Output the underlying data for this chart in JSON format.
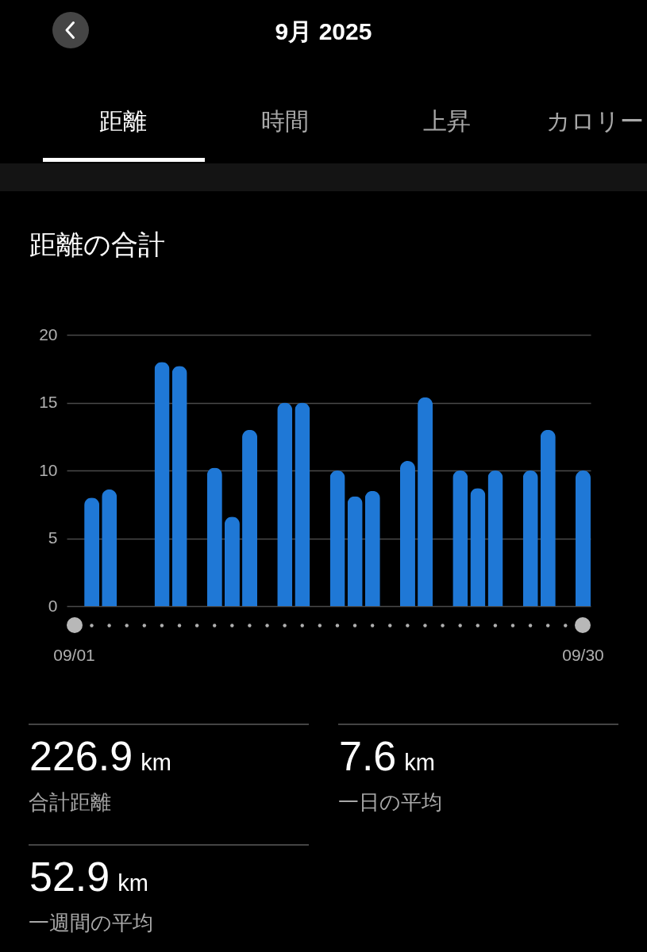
{
  "chart_data": {
    "type": "bar",
    "title": "距離の合計",
    "annotations": [
      "9月 2025",
      "距離",
      "時間",
      "上昇",
      "カロリー",
      "226.9 km",
      "合計距離",
      "7.6 km",
      "一日の平均",
      "52.9 km",
      "一週間の平均"
    ],
    "categories": [
      "09/01",
      null,
      null,
      null,
      null,
      null,
      null,
      null,
      null,
      null,
      null,
      null,
      null,
      null,
      null,
      null,
      null,
      null,
      null,
      null,
      null,
      null,
      null,
      null,
      null,
      null,
      null,
      null,
      null,
      "09/30"
    ],
    "values": [
      null,
      8.0,
      8.6,
      null,
      null,
      18.0,
      17.7,
      null,
      10.2,
      6.6,
      13.0,
      null,
      15.0,
      15.0,
      null,
      10.0,
      8.1,
      8.5,
      null,
      10.7,
      15.4,
      null,
      10.0,
      8.7,
      10.0,
      null,
      10.0,
      13.0,
      null,
      10.0
    ],
    "color": "#1f78d6",
    "ylim": [
      0,
      20
    ],
    "yticks": [
      0,
      5,
      10,
      15,
      20
    ],
    "grid": "y"
  }
}
